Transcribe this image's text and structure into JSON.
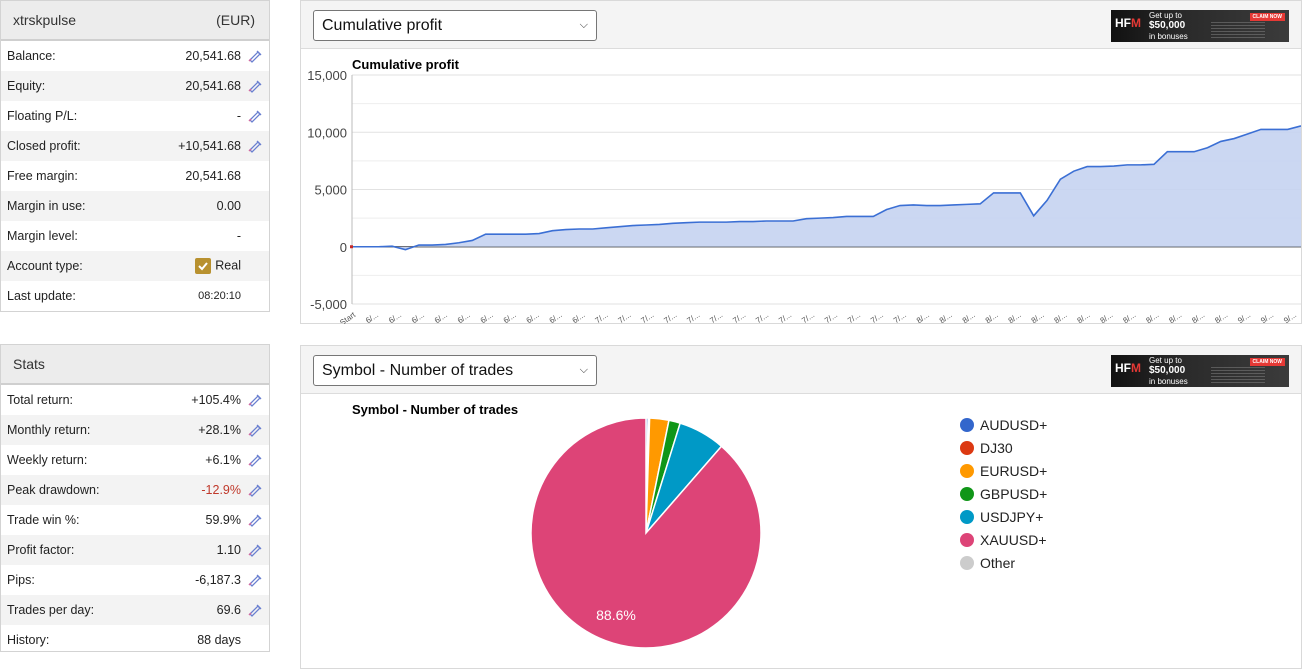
{
  "account": {
    "name": "xtrskpulse",
    "currency": "(EUR)",
    "rows": [
      {
        "label": "Balance:",
        "value": "20,541.68",
        "icon": true
      },
      {
        "label": "Equity:",
        "value": "20,541.68",
        "icon": true
      },
      {
        "label": "Floating P/L:",
        "value": "-",
        "icon": true
      },
      {
        "label": "Closed profit:",
        "value": "+10,541.68",
        "icon": true
      },
      {
        "label": "Free margin:",
        "value": "20,541.68",
        "icon": false
      },
      {
        "label": "Margin in use:",
        "value": "0.00",
        "icon": false
      },
      {
        "label": "Margin level:",
        "value": "-",
        "icon": false
      },
      {
        "label": "Account type:",
        "value": "Real",
        "icon": false
      },
      {
        "label": "Last update:",
        "value": "08:20:10",
        "icon": false
      }
    ]
  },
  "stats": {
    "title": "Stats",
    "rows": [
      {
        "label": "Total return:",
        "value": "+105.4%"
      },
      {
        "label": "Monthly return:",
        "value": "+28.1%"
      },
      {
        "label": "Weekly return:",
        "value": "+6.1%"
      },
      {
        "label": "Peak drawdown:",
        "value": "-12.9%"
      },
      {
        "label": "Trade win %:",
        "value": "59.9%"
      },
      {
        "label": "Profit factor:",
        "value": "1.10"
      },
      {
        "label": "Pips:",
        "value": "-6,187.3"
      },
      {
        "label": "Trades per day:",
        "value": "69.6"
      },
      {
        "label": "History:",
        "value": "88 days"
      }
    ]
  },
  "ad": {
    "brand": "HFM",
    "line1": "Get up to",
    "line2": "$50,000",
    "line3": "in bonuses",
    "cta": "CLAIM NOW"
  },
  "colors": {
    "line": "#3b6fd4",
    "fill": "#c5d3f1",
    "negative": "#c0392b"
  },
  "chart_data": [
    {
      "type": "area",
      "title": "Cumulative profit",
      "select_label": "Cumulative profit",
      "ylim": [
        -5000,
        15000
      ],
      "yticks": [
        "15,000",
        "10,000",
        "5,000",
        "0",
        "-5,000"
      ],
      "ytick_values": [
        15000,
        10000,
        5000,
        0,
        -5000
      ],
      "xticks": [
        "Start",
        "6/...",
        "6/...",
        "6/...",
        "6/...",
        "6/...",
        "6/...",
        "6/...",
        "6/...",
        "6/...",
        "6/...",
        "7/...",
        "7/...",
        "7/...",
        "7/...",
        "7/...",
        "7/...",
        "7/...",
        "7/...",
        "7/...",
        "7/...",
        "7/...",
        "7/...",
        "7/...",
        "7/...",
        "8/...",
        "8/...",
        "8/...",
        "8/...",
        "8/...",
        "8/...",
        "8/...",
        "8/...",
        "8/...",
        "8/...",
        "8/...",
        "8/...",
        "8/...",
        "8/...",
        "9/...",
        "9/...",
        "9/..."
      ],
      "values": [
        0,
        0,
        0,
        50,
        -250,
        150,
        150,
        200,
        350,
        550,
        1100,
        1100,
        1100,
        1100,
        1150,
        1400,
        1500,
        1550,
        1550,
        1650,
        1750,
        1850,
        1900,
        1950,
        2050,
        2100,
        2150,
        2150,
        2150,
        2200,
        2200,
        2250,
        2250,
        2250,
        2450,
        2500,
        2550,
        2650,
        2650,
        2650,
        3250,
        3600,
        3650,
        3600,
        3600,
        3650,
        3700,
        3750,
        4700,
        4700,
        4700,
        2700,
        4050,
        5900,
        6600,
        7000,
        7000,
        7050,
        7150,
        7150,
        7200,
        8300,
        8300,
        8300,
        8650,
        9200,
        9450,
        9850,
        10250,
        10250,
        10250,
        10550
      ]
    },
    {
      "type": "pie",
      "title": "Symbol - Number of trades",
      "select_label": "Symbol - Number of trades",
      "slices": [
        {
          "name": "AUDUSD+",
          "value": 0.3,
          "color": "#3366cc"
        },
        {
          "name": "DJ30",
          "value": 0.2,
          "color": "#dc3912"
        },
        {
          "name": "EURUSD+",
          "value": 2.7,
          "color": "#ff9900"
        },
        {
          "name": "GBPUSD+",
          "value": 1.6,
          "color": "#109618"
        },
        {
          "name": "USDJPY+",
          "value": 6.6,
          "color": "#0099c6"
        },
        {
          "name": "XAUUSD+",
          "value": 88.6,
          "color": "#dd4477"
        },
        {
          "name": "Other",
          "value": 0.0,
          "color": "#cccccc"
        }
      ],
      "slice_label": "88.6%"
    }
  ]
}
